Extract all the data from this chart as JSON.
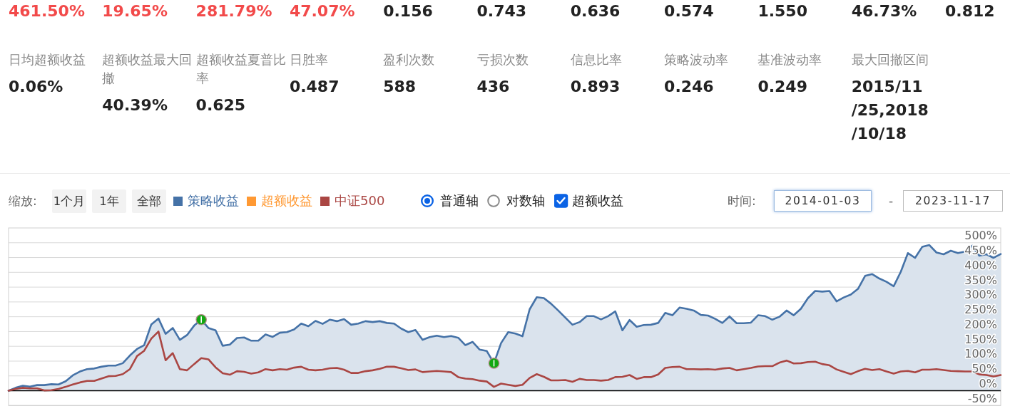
{
  "chart_data": [
    {
      "type": "other",
      "annotations": [
        "461.50%",
        "19.65%",
        "281.79%",
        "47.07%",
        "0.156",
        "0.743",
        "0.636",
        "0.574",
        "1.550",
        "46.73%",
        "0.812",
        "日均超额收益",
        "超额收益最大回撤",
        "超额收益夏普比率",
        "日胜率",
        "盈利次数",
        "亏损次数",
        "信息比率",
        "策略波动率",
        "基准波动率",
        "最大回撤区间",
        "0.06%",
        "40.39%",
        "0.625",
        "0.487",
        "588",
        "436",
        "0.893",
        "0.246",
        "0.249",
        "2015/11/25,2018/10/18"
      ]
    },
    {
      "type": "line",
      "categories": [
        null,
        null,
        null,
        null,
        null,
        null,
        null,
        null,
        null,
        null,
        null,
        null,
        null,
        null,
        null,
        null,
        null,
        null,
        null,
        null,
        null,
        null,
        null,
        null,
        null,
        null,
        null,
        null,
        null,
        null,
        null,
        null,
        null,
        null,
        null,
        null,
        null,
        null,
        null,
        null,
        null,
        null,
        null,
        null,
        null,
        null,
        null,
        null,
        null,
        null,
        null,
        null,
        null,
        null,
        null,
        null,
        null,
        null,
        null,
        null,
        null,
        null,
        null,
        null,
        null,
        null,
        null,
        null,
        null,
        null,
        null,
        null,
        null,
        null,
        null,
        null,
        null,
        null,
        null,
        null,
        null,
        null,
        null,
        null,
        null,
        null,
        null,
        null,
        null,
        null,
        null,
        null,
        null,
        null,
        null,
        null,
        null,
        null,
        null,
        null,
        null,
        null,
        null,
        null,
        null,
        null,
        null,
        null,
        null,
        null,
        null,
        null,
        null,
        null,
        null,
        null,
        null,
        null,
        null,
        null,
        null,
        null,
        null,
        null,
        null,
        null,
        null,
        null,
        null,
        null,
        null,
        null,
        null,
        null,
        null,
        null,
        null,
        null,
        null,
        null
      ],
      "series": [
        {
          "name": "策略收益",
          "type": "area",
          "color": "#4572a7",
          "values": [
            0,
            10,
            17,
            14,
            19,
            19,
            22,
            21,
            32,
            52,
            65,
            73,
            75,
            81,
            85,
            85,
            93,
            119,
            141,
            154,
            224,
            244,
            192,
            212,
            172,
            188,
            220,
            240,
            212,
            204,
            152,
            156,
            178,
            180,
            169,
            169,
            190,
            182,
            196,
            198,
            207,
            227,
            218,
            236,
            226,
            240,
            235,
            242,
            223,
            227,
            235,
            232,
            235,
            229,
            227,
            210,
            198,
            205,
            172,
            181,
            186,
            181,
            185,
            179,
            154,
            165,
            139,
            134,
            93,
            161,
            198,
            193,
            184,
            275,
            316,
            313,
            294,
            271,
            247,
            223,
            232,
            252,
            252,
            241,
            252,
            268,
            204,
            239,
            216,
            222,
            223,
            229,
            263,
            255,
            281,
            277,
            271,
            256,
            254,
            243,
            229,
            251,
            228,
            228,
            230,
            255,
            252,
            240,
            250,
            271,
            255,
            277,
            313,
            337,
            335,
            337,
            302,
            315,
            325,
            344,
            388,
            394,
            379,
            368,
            353,
            402,
            465,
            449,
            486,
            492,
            467,
            461,
            473,
            465,
            470,
            490,
            456,
            461,
            449,
            462
          ]
        },
        {
          "name": "超额收益",
          "color": "#ff9933",
          "values": [
            null,
            null,
            null,
            null,
            null,
            null,
            null,
            null,
            null,
            null,
            null,
            null,
            null,
            null,
            null,
            null,
            null,
            null,
            null,
            null,
            null,
            null,
            null,
            null,
            null,
            null,
            null,
            null,
            null,
            null,
            null,
            null,
            null,
            null,
            null,
            null,
            null,
            null,
            null,
            null,
            null,
            null,
            null,
            null,
            null,
            null,
            null,
            null,
            null,
            null,
            null,
            null,
            null,
            null,
            null,
            null,
            null,
            null,
            null,
            null,
            null,
            null,
            null,
            null,
            null,
            null,
            null,
            null,
            null,
            null,
            null,
            null,
            null,
            null,
            null,
            null,
            null,
            null,
            null,
            null,
            null,
            null,
            null,
            null,
            null,
            null,
            null,
            null,
            null,
            null,
            null,
            null,
            null,
            null,
            null,
            null,
            null,
            null,
            null,
            null,
            null,
            null,
            null,
            null,
            null,
            null,
            null,
            null,
            null,
            null,
            null,
            null,
            null,
            null,
            null,
            null,
            null,
            null,
            null,
            null,
            null,
            null,
            null,
            null,
            null,
            null,
            null,
            null,
            null,
            null,
            null,
            null,
            null,
            null,
            null,
            null,
            null,
            null,
            null,
            null
          ]
        },
        {
          "name": "中证500",
          "color": "#aa4643",
          "values": [
            0,
            6,
            10,
            8,
            8,
            1,
            2,
            6,
            13,
            21,
            28,
            33,
            33,
            41,
            49,
            50,
            56,
            73,
            117,
            135,
            176,
            200,
            103,
            127,
            73,
            69,
            90,
            110,
            106,
            79,
            59,
            54,
            66,
            64,
            58,
            62,
            73,
            69,
            73,
            71,
            78,
            81,
            71,
            69,
            71,
            76,
            77,
            71,
            60,
            60,
            66,
            69,
            74,
            81,
            81,
            76,
            70,
            72,
            63,
            65,
            67,
            65,
            63,
            46,
            41,
            39,
            34,
            31,
            13,
            24,
            20,
            16,
            20,
            43,
            56,
            47,
            35,
            35,
            36,
            30,
            40,
            36,
            36,
            34,
            36,
            46,
            47,
            53,
            40,
            46,
            46,
            55,
            77,
            80,
            81,
            73,
            73,
            72,
            73,
            71,
            75,
            77,
            69,
            73,
            77,
            82,
            83,
            83,
            95,
            102,
            92,
            93,
            97,
            98,
            90,
            86,
            72,
            64,
            56,
            66,
            74,
            70,
            73,
            65,
            58,
            65,
            67,
            62,
            71,
            71,
            73,
            70,
            67,
            66,
            65,
            65,
            55,
            53,
            48,
            53
          ]
        },
        {
          "type": "scatter",
          "color": "#12a812",
          "marker": "circle",
          "values": [
            null,
            null,
            null,
            null,
            null,
            null,
            null,
            null,
            null,
            null,
            null,
            null,
            null,
            null,
            null,
            null,
            null,
            null,
            null,
            null,
            null,
            null,
            null,
            null,
            null,
            null,
            null,
            240,
            null,
            null,
            null,
            null,
            null,
            null,
            null,
            null,
            null,
            null,
            null,
            null,
            null,
            null,
            null,
            null,
            null,
            null,
            null,
            null,
            null,
            null,
            null,
            null,
            null,
            null,
            null,
            null,
            null,
            null,
            null,
            null,
            null,
            null,
            null,
            null,
            null,
            null,
            null,
            null,
            93,
            null,
            null,
            null,
            null,
            null,
            null,
            null,
            null,
            null,
            null,
            null,
            null,
            null,
            null,
            null,
            null,
            null,
            null,
            null,
            null,
            null,
            null,
            null,
            null,
            null,
            null,
            null,
            null,
            null,
            null,
            null,
            null,
            null,
            null,
            null,
            null,
            null,
            null,
            null,
            null,
            null,
            null,
            null,
            null,
            null,
            null,
            null,
            null,
            null,
            null,
            null,
            null,
            null,
            null,
            null,
            null,
            null,
            null,
            null,
            null,
            null,
            null,
            null,
            null,
            null,
            null,
            null,
            null,
            null,
            null,
            null
          ]
        }
      ],
      "ylim": [
        -50,
        550
      ],
      "yticks": [
        {
          "value": -50,
          "label": "-50%"
        },
        {
          "value": 0,
          "label": "0%"
        },
        {
          "value": 50,
          "label": "50%"
        },
        {
          "value": 100,
          "label": "100%"
        },
        {
          "value": 150,
          "label": "150%"
        },
        {
          "value": 200,
          "label": "200%"
        },
        {
          "value": 250,
          "label": "250%"
        },
        {
          "value": 300,
          "label": "300%"
        },
        {
          "value": 350,
          "label": "350%"
        },
        {
          "value": 400,
          "label": "400%"
        },
        {
          "value": 450,
          "label": "450%"
        },
        {
          "value": 500,
          "label": "500%"
        }
      ],
      "grid": "y",
      "legend": "top left",
      "line_style": "solid",
      "ref_lines": [
        {
          "axis": "y",
          "value": 0,
          "color": "#000000"
        }
      ],
      "annotations": [
        "缩放:",
        "1个月",
        "1年",
        "全部",
        "普通轴",
        "对数轴",
        "超额收益",
        "时间:",
        "2014-01-03",
        "-",
        "2023-11-17"
      ]
    }
  ]
}
